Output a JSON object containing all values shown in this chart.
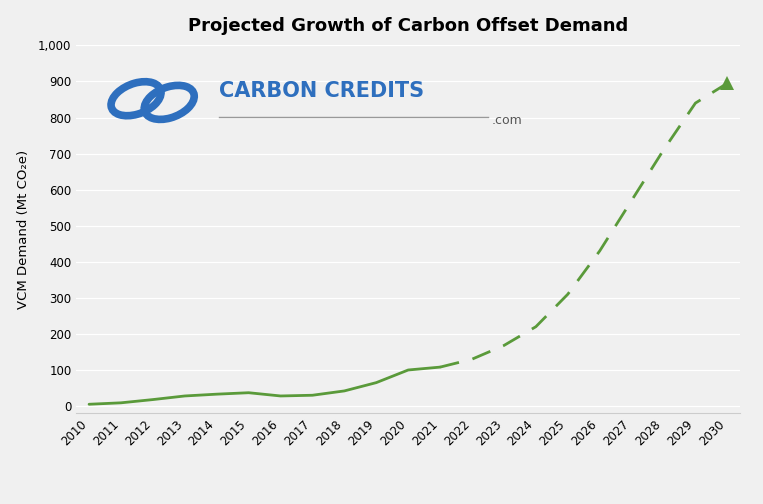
{
  "title": "Projected Growth of Carbon Offset Demand",
  "ylabel": "VCM Demand (Mt CO₂e)",
  "background_color": "#f0f0f0",
  "plot_bg_color": "#f0f0f0",
  "line_color": "#5a9a3a",
  "ylim": [
    -20,
    1000
  ],
  "yticks": [
    0,
    100,
    200,
    300,
    400,
    500,
    600,
    700,
    800,
    900,
    1000
  ],
  "solid_years": [
    2010,
    2011,
    2012,
    2013,
    2014,
    2015,
    2016,
    2017,
    2018,
    2019,
    2020,
    2021
  ],
  "solid_values": [
    5,
    9,
    18,
    28,
    33,
    37,
    28,
    30,
    42,
    65,
    100,
    108
  ],
  "dashed_years": [
    2021,
    2022,
    2023,
    2024,
    2025,
    2026,
    2027,
    2028,
    2029,
    2030
  ],
  "dashed_values": [
    108,
    130,
    168,
    220,
    310,
    430,
    570,
    710,
    840,
    895
  ],
  "all_years": [
    2010,
    2011,
    2012,
    2013,
    2014,
    2015,
    2016,
    2017,
    2018,
    2019,
    2020,
    2021,
    2022,
    2023,
    2024,
    2025,
    2026,
    2027,
    2028,
    2029,
    2030
  ],
  "logo_text_carbon": "CARBON CREDITS",
  "logo_text_com": ".com",
  "logo_color": "#2e6fbe",
  "logo_com_color": "#555555",
  "grid_color": "#ffffff",
  "spine_color": "#cccccc"
}
